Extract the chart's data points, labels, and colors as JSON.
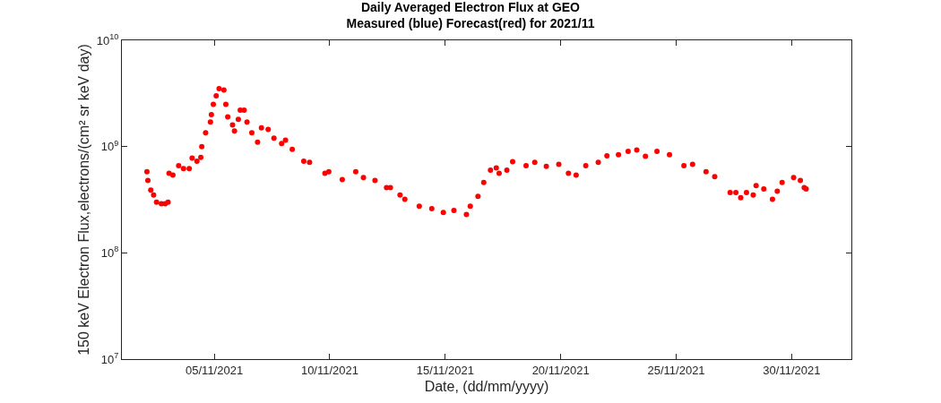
{
  "chart_data": {
    "type": "scatter",
    "title": "Daily Averaged Electron Flux at GEO",
    "subtitle": "Measured (blue) Forecast(red) for 2021/11",
    "xlabel": "Date, (dd/mm/yyyy)",
    "ylabel": "150 keV Electron Flux,electrons/(cm² sr keV day)",
    "x": [
      "2021-11-02T02:00",
      "2021-11-02T03:00",
      "2021-11-02T06:00",
      "2021-11-02T09:00",
      "2021-11-02T12:00",
      "2021-11-02T17:00",
      "2021-11-02T21:00",
      "2021-11-03T00:00",
      "2021-11-03T01:00",
      "2021-11-03T05:00",
      "2021-11-03T11:00",
      "2021-11-03T16:00",
      "2021-11-03T22:00",
      "2021-11-04T01:00",
      "2021-11-04T06:00",
      "2021-11-04T10:00",
      "2021-11-04T11:00",
      "2021-11-04T15:00",
      "2021-11-04T20:00",
      "2021-11-04T21:00",
      "2021-11-04T23:00",
      "2021-11-05T02:00",
      "2021-11-05T05:00",
      "2021-11-05T10:00",
      "2021-11-05T12:00",
      "2021-11-05T14:00",
      "2021-11-05T19:00",
      "2021-11-05T21:00",
      "2021-11-06T01:00",
      "2021-11-06T03:00",
      "2021-11-06T07:00",
      "2021-11-06T10:00",
      "2021-11-06T15:00",
      "2021-11-06T21:00",
      "2021-11-07T01:00",
      "2021-11-07T08:00",
      "2021-11-07T14:00",
      "2021-11-07T22:00",
      "2021-11-08T02:00",
      "2021-11-08T09:00",
      "2021-11-08T21:00",
      "2021-11-09T03:00",
      "2021-11-09T19:00",
      "2021-11-09T23:00",
      "2021-11-10T13:00",
      "2021-11-11T03:00",
      "2021-11-11T11:00",
      "2021-11-11T23:00",
      "2021-11-12T11:00",
      "2021-11-12T15:00",
      "2021-11-13T01:00",
      "2021-11-13T06:00",
      "2021-11-13T21:00",
      "2021-11-14T10:00",
      "2021-11-14T22:00",
      "2021-11-15T09:00",
      "2021-11-15T22:00",
      "2021-11-16T02:00",
      "2021-11-16T10:00",
      "2021-11-16T16:00",
      "2021-11-16T23:00",
      "2021-11-17T05:00",
      "2021-11-17T08:00",
      "2021-11-17T16:00",
      "2021-11-17T22:00",
      "2021-11-18T12:00",
      "2021-11-18T21:00",
      "2021-11-19T09:00",
      "2021-11-19T22:00",
      "2021-11-20T08:00",
      "2021-11-20T16:00",
      "2021-11-21T02:00",
      "2021-11-21T15:00",
      "2021-11-22T00:00",
      "2021-11-22T12:00",
      "2021-11-22T22:00",
      "2021-11-23T07:00",
      "2021-11-23T16:00",
      "2021-11-24T04:00",
      "2021-11-24T17:00",
      "2021-11-25T08:00",
      "2021-11-25T17:00",
      "2021-11-26T07:00",
      "2021-11-26T16:00",
      "2021-11-27T08:00",
      "2021-11-27T14:00",
      "2021-11-27T19:00",
      "2021-11-28T01:00",
      "2021-11-28T08:00",
      "2021-11-28T11:00",
      "2021-11-28T19:00",
      "2021-11-29T04:00",
      "2021-11-29T09:00",
      "2021-11-29T14:00",
      "2021-11-30T02:00",
      "2021-11-30T09:00",
      "2021-11-30T13:00",
      "2021-11-30T15:00"
    ],
    "values": [
      580000000.0,
      480000000.0,
      390000000.0,
      350000000.0,
      300000000.0,
      290000000.0,
      290000000.0,
      300000000.0,
      560000000.0,
      540000000.0,
      660000000.0,
      620000000.0,
      620000000.0,
      780000000.0,
      730000000.0,
      790000000.0,
      1000000000.0,
      1350000000.0,
      1700000000.0,
      2000000000.0,
      2500000000.0,
      3000000000.0,
      3500000000.0,
      3400000000.0,
      2500000000.0,
      1900000000.0,
      1600000000.0,
      1400000000.0,
      1800000000.0,
      2200000000.0,
      2200000000.0,
      1700000000.0,
      1350000000.0,
      1100000000.0,
      1500000000.0,
      1450000000.0,
      1200000000.0,
      1070000000.0,
      1150000000.0,
      940000000.0,
      730000000.0,
      710000000.0,
      560000000.0,
      580000000.0,
      490000000.0,
      580000000.0,
      510000000.0,
      480000000.0,
      410000000.0,
      410000000.0,
      350000000.0,
      320000000.0,
      275000000.0,
      260000000.0,
      240000000.0,
      250000000.0,
      230000000.0,
      275000000.0,
      340000000.0,
      460000000.0,
      600000000.0,
      630000000.0,
      560000000.0,
      600000000.0,
      720000000.0,
      660000000.0,
      710000000.0,
      650000000.0,
      680000000.0,
      560000000.0,
      540000000.0,
      660000000.0,
      710000000.0,
      820000000.0,
      840000000.0,
      900000000.0,
      930000000.0,
      810000000.0,
      900000000.0,
      840000000.0,
      660000000.0,
      680000000.0,
      580000000.0,
      520000000.0,
      370000000.0,
      370000000.0,
      330000000.0,
      370000000.0,
      350000000.0,
      430000000.0,
      400000000.0,
      320000000.0,
      380000000.0,
      460000000.0,
      510000000.0,
      480000000.0,
      410000000.0,
      400000000.0
    ],
    "color": "#ff0000",
    "marker": "circle",
    "log": "y",
    "xlim": [
      "2021-11-01",
      "2021-12-02T14:00"
    ],
    "xticks": [
      {
        "value": "2021-11-05",
        "label": "05/11/2021"
      },
      {
        "value": "2021-11-10",
        "label": "10/11/2021"
      },
      {
        "value": "2021-11-15",
        "label": "15/11/2021"
      },
      {
        "value": "2021-11-20",
        "label": "20/11/2021"
      },
      {
        "value": "2021-11-25",
        "label": "25/11/2021"
      },
      {
        "value": "2021-11-30",
        "label": "30/11/2021"
      }
    ],
    "ylim": [
      10000000.0,
      10000000000.0
    ],
    "yticks": [
      {
        "value": 10000000.0,
        "label": "10$^{7}$"
      },
      {
        "value": 100000000.0,
        "label": "10$^{8}$"
      },
      {
        "value": 1000000000.0,
        "label": "10$^{9}$"
      },
      {
        "value": 10000000000.0,
        "label": "10$^{10}$"
      }
    ]
  }
}
